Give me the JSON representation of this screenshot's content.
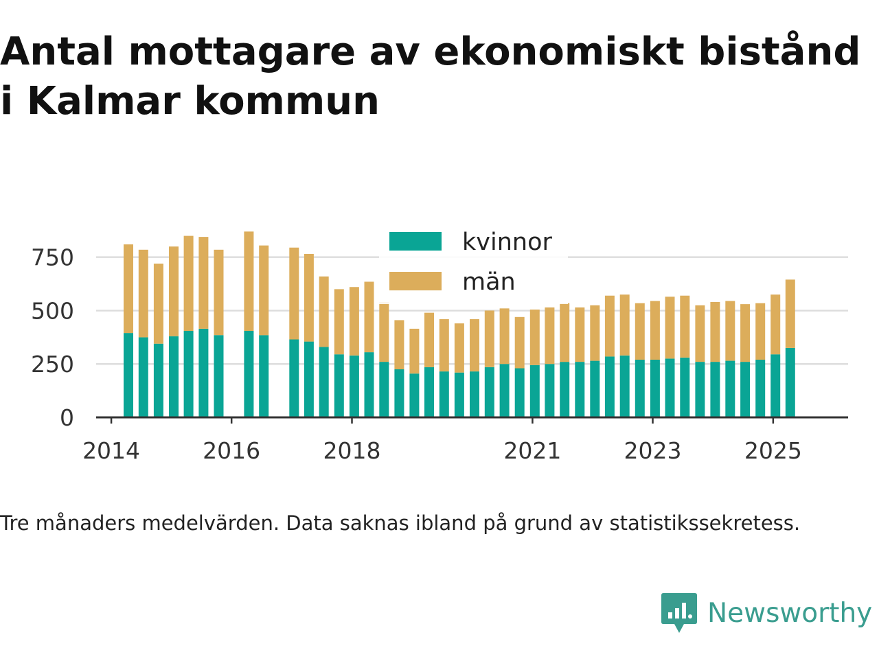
{
  "title": "Antal mottagare av ekonomiskt bistånd i Kalmar kommun",
  "note": "Tre månaders medelvärden. Data saknas ibland på grund av statistikssekretess.",
  "brand": {
    "name": "Newsworthy",
    "icon": "newsworthy-logo-icon"
  },
  "colors": {
    "kvinnor": "#0aa595",
    "man": "#dcad5b",
    "axis": "#333333",
    "grid": "#dddddd",
    "text": "#333333"
  },
  "chart_data": {
    "type": "bar",
    "stacked": true,
    "x_is_dates": true,
    "xlim": [
      "2013-10-01",
      "2026-04-01"
    ],
    "ylim": [
      0,
      900
    ],
    "yticks": [
      0,
      250,
      500,
      750
    ],
    "xticks": [
      {
        "label": "2014",
        "date": "2014-01-01"
      },
      {
        "label": "2016",
        "date": "2016-01-01"
      },
      {
        "label": "2018",
        "date": "2018-01-01"
      },
      {
        "label": "2021",
        "date": "2021-01-01"
      },
      {
        "label": "2023",
        "date": "2023-01-01"
      },
      {
        "label": "2025",
        "date": "2025-01-01"
      }
    ],
    "grid": true,
    "legend_position": "top-center",
    "x": [
      "2014-04",
      "2014-07",
      "2014-10",
      "2015-01",
      "2015-04",
      "2015-07",
      "2015-10",
      "2016-04",
      "2016-07",
      "2017-01",
      "2017-04",
      "2017-07",
      "2017-10",
      "2018-01",
      "2018-04",
      "2018-07",
      "2018-10",
      "2019-01",
      "2019-04",
      "2019-07",
      "2019-10",
      "2020-01",
      "2020-04",
      "2020-07",
      "2020-10",
      "2021-01",
      "2021-04",
      "2021-07",
      "2021-10",
      "2022-01",
      "2022-04",
      "2022-07",
      "2022-10",
      "2023-01",
      "2023-04",
      "2023-07",
      "2023-10",
      "2024-01",
      "2024-04",
      "2024-07",
      "2024-10",
      "2025-01",
      "2025-04"
    ],
    "series": [
      {
        "name": "kvinnor",
        "values": [
          395,
          375,
          345,
          380,
          405,
          415,
          385,
          405,
          385,
          365,
          355,
          330,
          295,
          290,
          305,
          260,
          225,
          205,
          235,
          215,
          210,
          215,
          235,
          250,
          230,
          245,
          250,
          260,
          260,
          265,
          285,
          290,
          270,
          270,
          275,
          280,
          260,
          260,
          265,
          260,
          270,
          295,
          325
        ]
      },
      {
        "name": "män",
        "values": [
          415,
          410,
          375,
          420,
          445,
          430,
          400,
          465,
          420,
          430,
          410,
          330,
          305,
          320,
          330,
          280,
          230,
          210,
          255,
          245,
          230,
          245,
          265,
          260,
          240,
          260,
          265,
          275,
          255,
          260,
          285,
          285,
          265,
          275,
          290,
          290,
          265,
          280,
          280,
          270,
          265,
          280,
          320
        ]
      }
    ]
  }
}
